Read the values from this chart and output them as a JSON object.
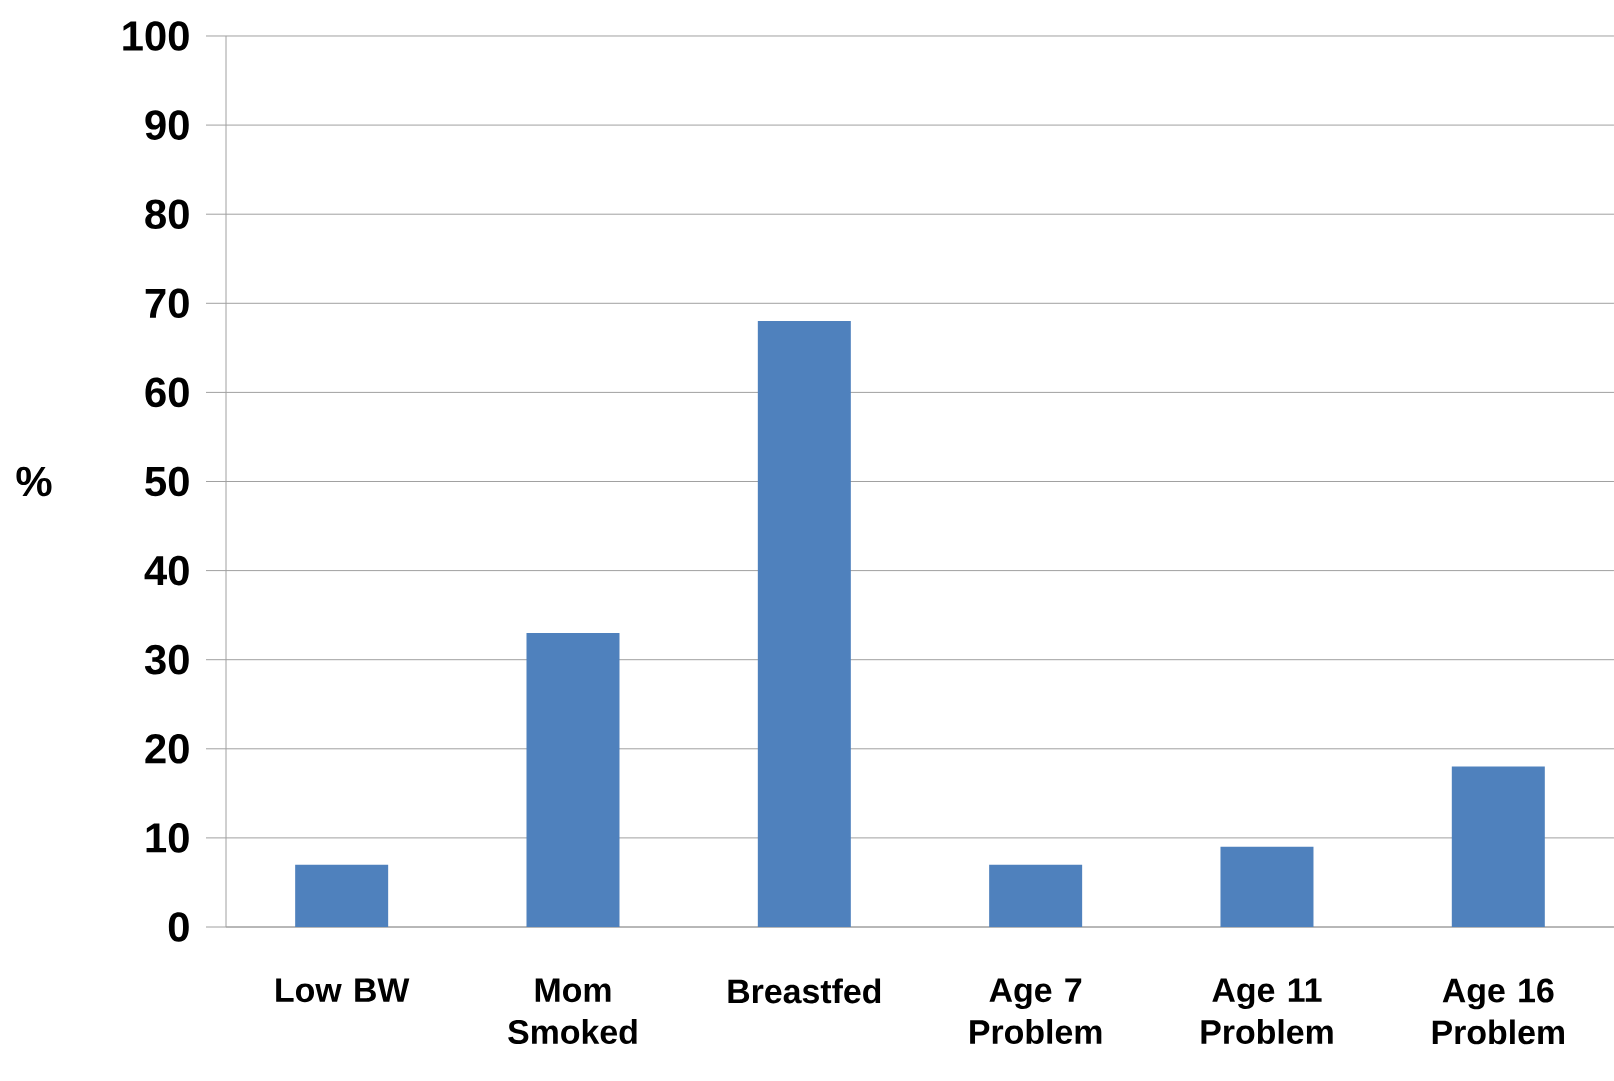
{
  "chart_data": {
    "type": "bar",
    "ylabel": "%",
    "categories": [
      "Low BW",
      "Mom Smoked",
      "Breastfed",
      "Age 7 Problem",
      "Age 11 Problem",
      "Age 16 Problem"
    ],
    "values": [
      7,
      33,
      68,
      7,
      9,
      18
    ],
    "color": "#4f81bd",
    "ylim": [
      0,
      100
    ],
    "yticks": [
      0,
      10,
      20,
      30,
      40,
      50,
      60,
      70,
      80,
      90,
      100
    ],
    "grid": "y"
  }
}
